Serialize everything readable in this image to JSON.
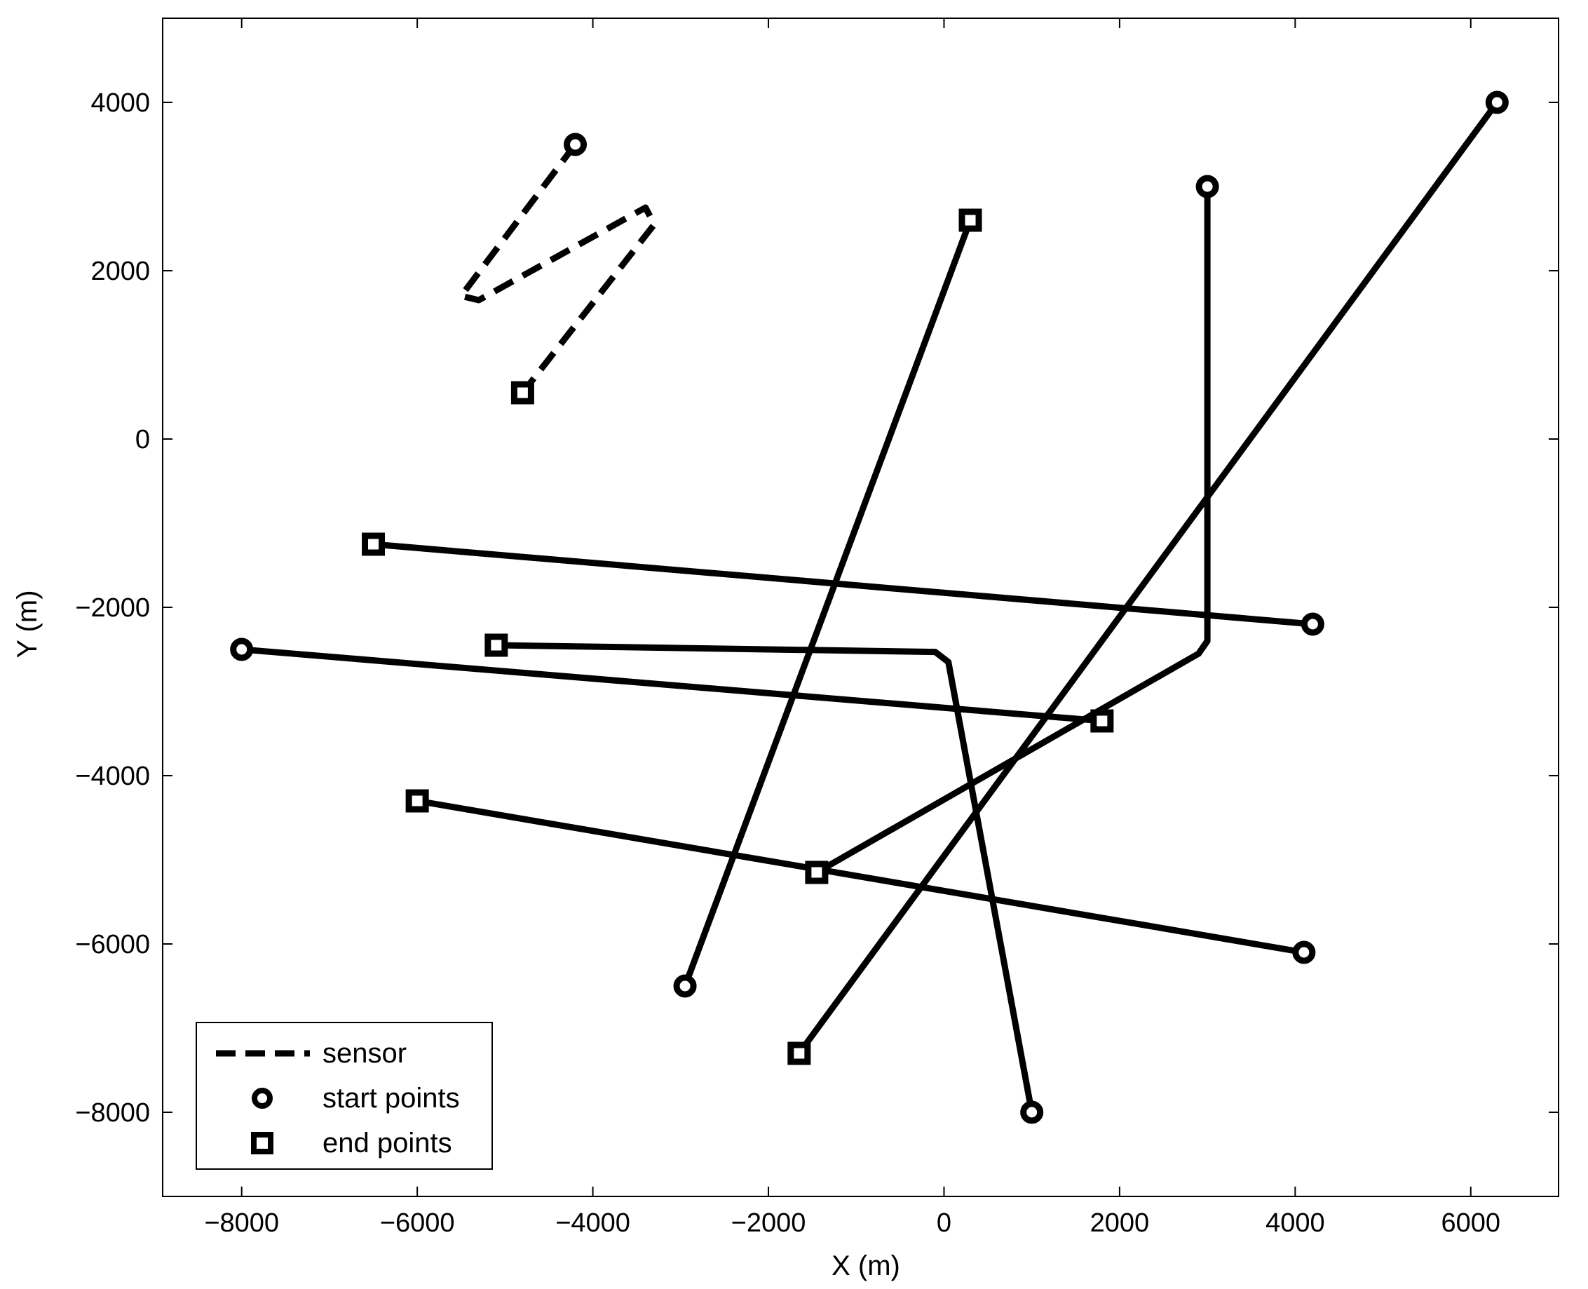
{
  "chart_data": {
    "type": "line",
    "xlabel": "X (m)",
    "ylabel": "Y (m)",
    "xlim": [
      -8900,
      7000
    ],
    "ylim": [
      -9000,
      5000
    ],
    "xticks": [
      -8000,
      -6000,
      -4000,
      -2000,
      0,
      2000,
      4000,
      6000
    ],
    "yticks": [
      -8000,
      -6000,
      -4000,
      -2000,
      0,
      2000,
      4000
    ],
    "xtick_labels": [
      "−8000",
      "−6000",
      "−4000",
      "−2000",
      "0",
      "2000",
      "4000",
      "6000"
    ],
    "ytick_labels": [
      "−8000",
      "−6000",
      "−4000",
      "−2000",
      "0",
      "2000",
      "4000"
    ],
    "grid": false,
    "legend_position": "bottom-left",
    "colors": {
      "line": "#000000",
      "background": "#ffffff"
    },
    "legend": [
      {
        "label": "sensor",
        "style": "dashed-line"
      },
      {
        "label": "start points",
        "style": "circle-marker"
      },
      {
        "label": "end points",
        "style": "square-marker"
      }
    ],
    "sensor": {
      "path": [
        [
          -4200,
          3500
        ],
        [
          -5500,
          1700
        ],
        [
          -5300,
          1650
        ],
        [
          -3400,
          2750
        ],
        [
          -3300,
          2550
        ],
        [
          -4800,
          550
        ]
      ],
      "start": [
        -4200,
        3500
      ],
      "end": [
        -4800,
        550
      ]
    },
    "targets": [
      {
        "path": [
          [
            -2950,
            -6500
          ],
          [
            300,
            2600
          ]
        ],
        "start": [
          -2950,
          -6500
        ],
        "end": [
          300,
          2600
        ]
      },
      {
        "path": [
          [
            3000,
            3000
          ],
          [
            3000,
            -2400
          ],
          [
            2900,
            -2550
          ],
          [
            -1450,
            -5150
          ]
        ],
        "start": [
          3000,
          3000
        ],
        "end": [
          -1450,
          -5150
        ]
      },
      {
        "path": [
          [
            6300,
            4000
          ],
          [
            -1650,
            -7300
          ]
        ],
        "start": [
          6300,
          4000
        ],
        "end": [
          -1650,
          -7300
        ]
      },
      {
        "path": [
          [
            4200,
            -2200
          ],
          [
            -6500,
            -1250
          ]
        ],
        "start": [
          4200,
          -2200
        ],
        "end": [
          -6500,
          -1250
        ]
      },
      {
        "path": [
          [
            -8000,
            -2500
          ],
          [
            1800,
            -3350
          ]
        ],
        "start": [
          -8000,
          -2500
        ],
        "end": [
          1800,
          -3350
        ]
      },
      {
        "path": [
          [
            1000,
            -8000
          ],
          [
            50,
            -2650
          ],
          [
            -100,
            -2530
          ],
          [
            -5100,
            -2450
          ]
        ],
        "start": [
          1000,
          -8000
        ],
        "end": [
          -5100,
          -2450
        ]
      },
      {
        "path": [
          [
            4100,
            -6100
          ],
          [
            -6000,
            -4300
          ]
        ],
        "start": [
          4100,
          -6100
        ],
        "end": [
          -6000,
          -4300
        ]
      }
    ]
  }
}
